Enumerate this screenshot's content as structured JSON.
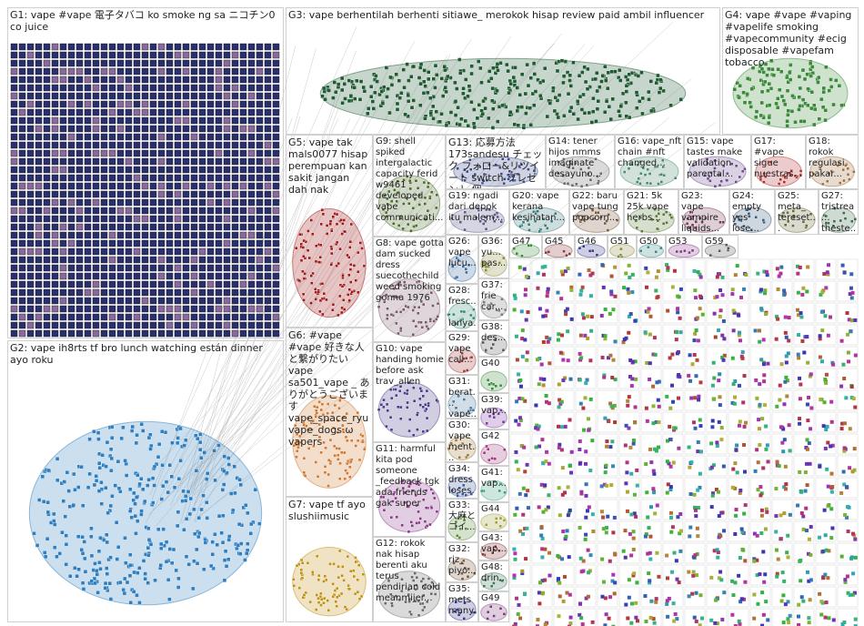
{
  "groups": [
    {
      "label": "G1: vape #vape 電子タバコ ko smoke ng sa ニコチン0 co juice"
    },
    {
      "label": "G3: vape berhentilah berhenti sitiawe_ merokok hisap review paid ambil influencer"
    },
    {
      "label": "G4: vape #vape #vaping #vapelife smoking #vapecommunity #ecig disposable #vapefam tobacco"
    },
    {
      "label": "G2: vape ih8rts tf bro lunch watching están dinner ayo roku"
    },
    {
      "label": "G5: vape tak mals0077 hisap perempuan kan sakit jangan dah nak"
    },
    {
      "label": "G9: shell spiked intergalactic capacity ferid w9461 developed vape communicati..."
    },
    {
      "label": "G13: 応募方法 173sandesu チェック フォロー&リツイート switch プレゼント 個..."
    },
    {
      "label": "G14: tener hijos nmms imaginate desayuno..."
    },
    {
      "label": "G16: vape_nft chain #nft changed..."
    },
    {
      "label": "G15: vape tastes make validation parental..."
    },
    {
      "label": "G17: #vape sigue nuestras..."
    },
    {
      "label": "G18: rokok regulasi pakar..."
    },
    {
      "label": "G19: ngadi dari depok itu malem..."
    },
    {
      "label": "G20: vape kerana kesihatan..."
    },
    {
      "label": "G22: baru vape tung popcorn..."
    },
    {
      "label": "G21: 5k 25k vape herbs..."
    },
    {
      "label": "G23: vape vampire liquids..."
    },
    {
      "label": "G24: empty yes lose..."
    },
    {
      "label": "G25: meta_ tereset..."
    },
    {
      "label": "G27: tristrea... theste..."
    },
    {
      "label": "G8: vape gotta dam sucked dress suecothechild weed smoking gonna 1976"
    },
    {
      "label": "G6: #vape #vape 好きな人と繋がりたい vape sa501_vape _ ありがとうございます vape_space_ryu vape_dogs ω vapers"
    },
    {
      "label": "G10: vape handing homie before ask trav_allen"
    },
    {
      "label": "G11: harmful kita pod someone _feedback tgk ada friends gak super"
    },
    {
      "label": "G7: vape tf ayo slushiimusic"
    },
    {
      "label": "G12: rokok nak hisap berenti aku terus pendirian cold meanmijer..."
    },
    {
      "label": "G26: vape lucu..."
    },
    {
      "label": "G36: yu... pas..."
    },
    {
      "label": "G28: fresc... lanya..."
    },
    {
      "label": "G37: frie car..."
    },
    {
      "label": "G29: vape call..."
    },
    {
      "label": "G38: des..."
    },
    {
      "label": "G31: berat... vape..."
    },
    {
      "label": "G40"
    },
    {
      "label": "G30: vape ment..."
    },
    {
      "label": "G39: vap..."
    },
    {
      "label": "G34: dress loses..."
    },
    {
      "label": "G42"
    },
    {
      "label": "G33: 大麻と コイ..."
    },
    {
      "label": "G41: vap..."
    },
    {
      "label": "G32: riz_ piyo..."
    },
    {
      "label": "G44"
    },
    {
      "label": "G35: mets many..."
    },
    {
      "label": "G43: vap..."
    },
    {
      "label": "G48: drin..."
    },
    {
      "label": "G49"
    },
    {
      "label": "G47"
    },
    {
      "label": "G45"
    },
    {
      "label": "G46"
    },
    {
      "label": "G51"
    },
    {
      "label": "G50"
    },
    {
      "label": "G53"
    },
    {
      "label": "G59"
    }
  ]
}
